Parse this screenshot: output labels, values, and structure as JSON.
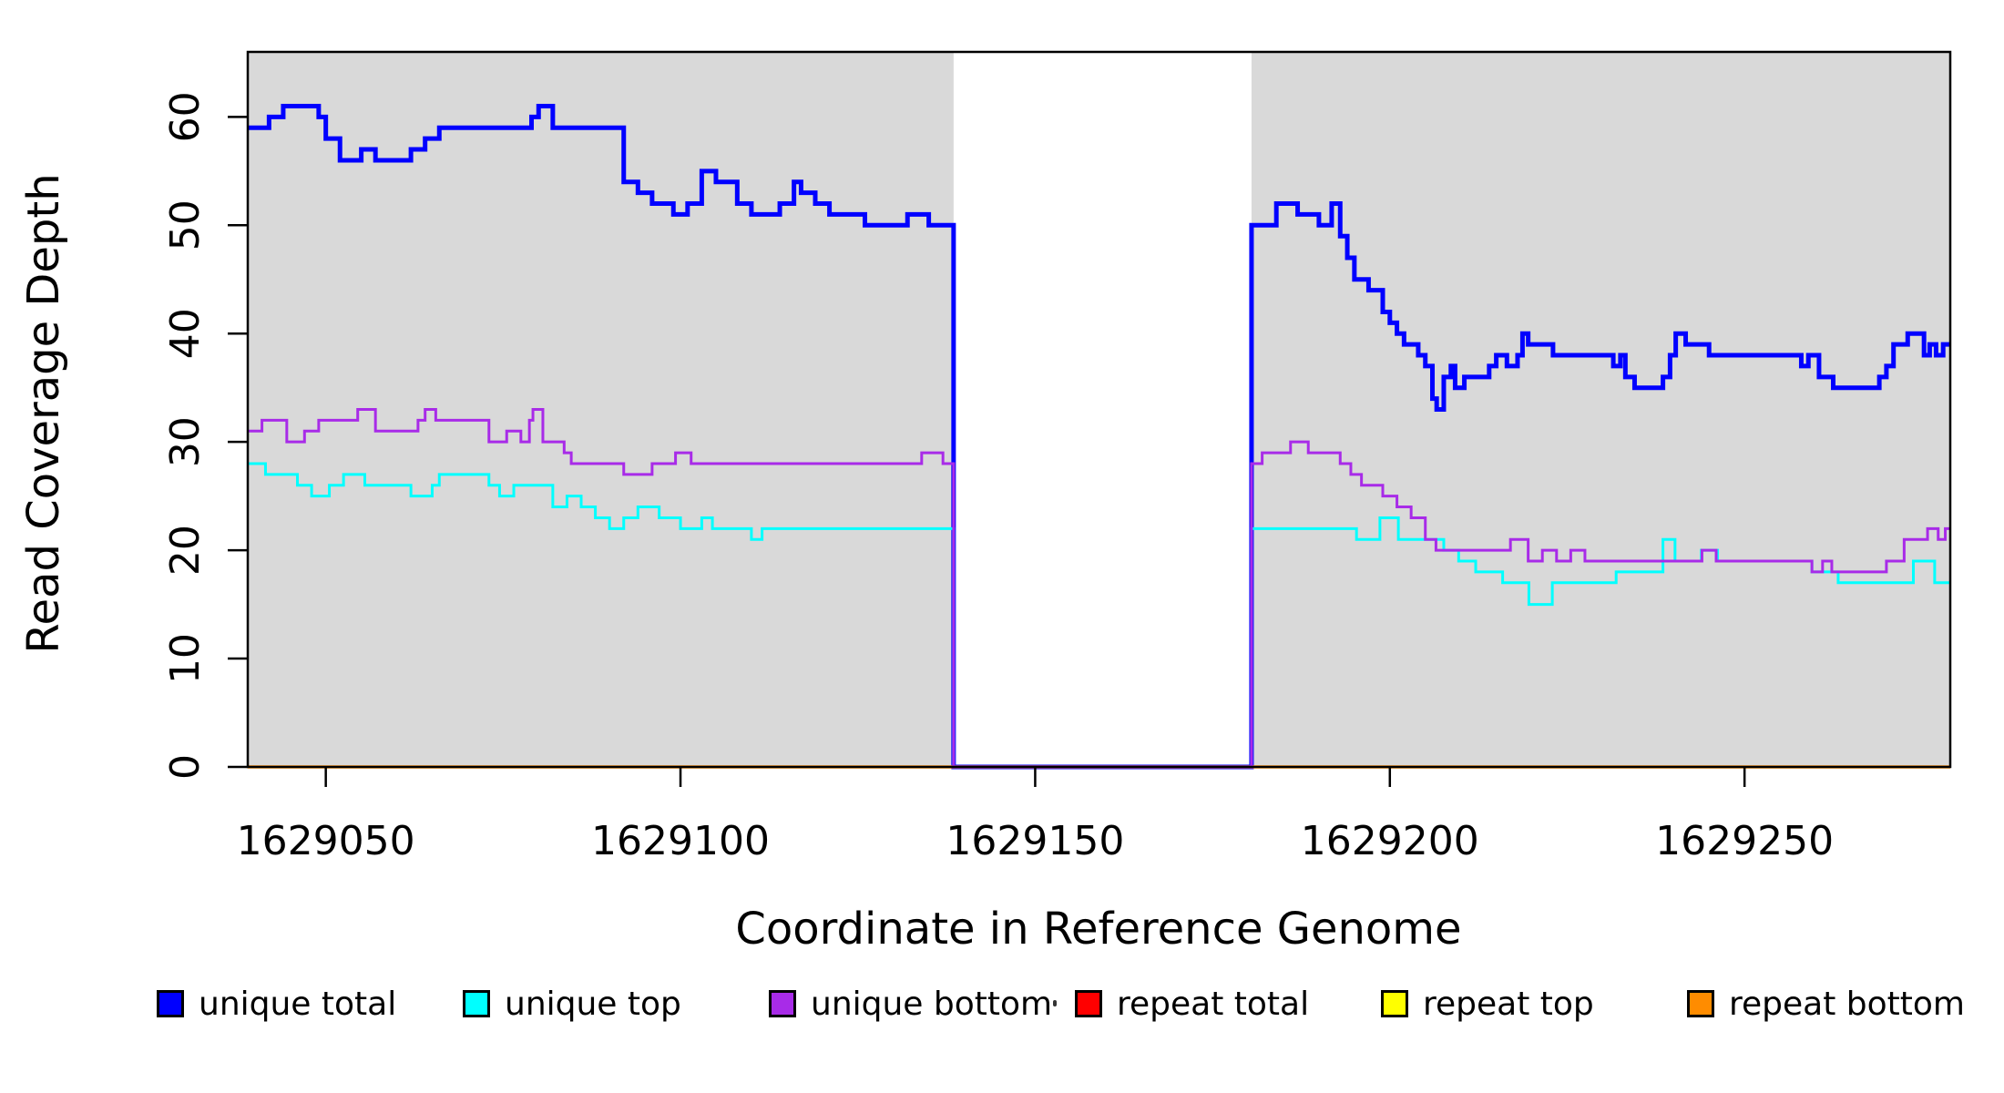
{
  "axes": {
    "xlabel": "Coordinate in Reference Genome",
    "ylabel": "Read Coverage Depth",
    "xticks": [
      1629050,
      1629100,
      1629150,
      1629200,
      1629250
    ],
    "yticks": [
      0,
      10,
      20,
      30,
      40,
      50,
      60
    ]
  },
  "chart_data": {
    "type": "line",
    "subtype": "step-post",
    "title": "",
    "xlabel": "Coordinate in Reference Genome",
    "ylabel": "Read Coverage Depth",
    "xlim": [
      1629039,
      1629279
    ],
    "ylim": [
      0,
      66
    ],
    "grid": false,
    "background_bands_color": "#D9D9D9",
    "shaded_regions": [
      [
        1629039,
        1629138.5
      ],
      [
        1629180.5,
        1629279
      ]
    ],
    "masked_gap": [
      1629138.5,
      1629180.5
    ],
    "series": [
      {
        "name": "unique total",
        "color": "#0000FF",
        "width": 5,
        "points": [
          [
            1629039,
            59
          ],
          [
            1629042,
            60
          ],
          [
            1629044,
            61
          ],
          [
            1629049,
            60
          ],
          [
            1629050,
            58
          ],
          [
            1629052,
            56
          ],
          [
            1629055,
            57
          ],
          [
            1629057,
            56
          ],
          [
            1629062,
            57
          ],
          [
            1629064,
            58
          ],
          [
            1629066,
            59
          ],
          [
            1629079,
            60
          ],
          [
            1629080,
            61
          ],
          [
            1629082,
            59
          ],
          [
            1629092,
            54
          ],
          [
            1629094,
            53
          ],
          [
            1629096,
            52
          ],
          [
            1629099,
            51
          ],
          [
            1629101,
            52
          ],
          [
            1629103,
            55
          ],
          [
            1629105,
            54
          ],
          [
            1629108,
            52
          ],
          [
            1629110,
            51
          ],
          [
            1629114,
            52
          ],
          [
            1629116,
            54
          ],
          [
            1629117,
            53
          ],
          [
            1629119,
            52
          ],
          [
            1629121,
            51
          ],
          [
            1629126,
            50
          ],
          [
            1629132,
            51
          ],
          [
            1629135,
            50
          ],
          [
            1629138.5,
            0
          ],
          [
            1629180.5,
            50
          ],
          [
            1629184,
            52
          ],
          [
            1629187,
            51
          ],
          [
            1629190,
            50
          ],
          [
            1629191.8,
            52
          ],
          [
            1629193,
            49
          ],
          [
            1629194,
            47
          ],
          [
            1629195,
            45
          ],
          [
            1629197,
            44
          ],
          [
            1629199,
            42
          ],
          [
            1629200,
            41
          ],
          [
            1629201,
            40
          ],
          [
            1629202,
            39
          ],
          [
            1629204,
            38
          ],
          [
            1629205,
            37
          ],
          [
            1629206,
            34
          ],
          [
            1629206.6,
            33
          ],
          [
            1629207.6,
            36
          ],
          [
            1629208.6,
            37
          ],
          [
            1629209.2,
            35
          ],
          [
            1629210.5,
            36
          ],
          [
            1629214,
            37
          ],
          [
            1629215,
            38
          ],
          [
            1629216.5,
            37
          ],
          [
            1629218,
            38
          ],
          [
            1629218.7,
            40
          ],
          [
            1629219.5,
            39
          ],
          [
            1629223,
            38
          ],
          [
            1629231.5,
            37
          ],
          [
            1629232.5,
            38
          ],
          [
            1629233.2,
            36
          ],
          [
            1629234.5,
            35
          ],
          [
            1629238.5,
            36
          ],
          [
            1629239.5,
            38
          ],
          [
            1629240.3,
            40
          ],
          [
            1629241.7,
            39
          ],
          [
            1629245,
            38
          ],
          [
            1629258,
            37
          ],
          [
            1629259,
            38
          ],
          [
            1629260.5,
            36
          ],
          [
            1629262.5,
            35
          ],
          [
            1629269,
            36
          ],
          [
            1629270,
            37
          ],
          [
            1629271,
            39
          ],
          [
            1629273,
            40
          ],
          [
            1629275.3,
            38
          ],
          [
            1629276.1,
            39
          ],
          [
            1629277,
            38
          ],
          [
            1629278,
            39
          ]
        ]
      },
      {
        "name": "unique top",
        "color": "#00FFFF",
        "width": 3,
        "points": [
          [
            1629039,
            28
          ],
          [
            1629041.5,
            27
          ],
          [
            1629046,
            26
          ],
          [
            1629048,
            25
          ],
          [
            1629050.5,
            26
          ],
          [
            1629052.5,
            27
          ],
          [
            1629055.5,
            26
          ],
          [
            1629062,
            25
          ],
          [
            1629065,
            26
          ],
          [
            1629066,
            27
          ],
          [
            1629073,
            26
          ],
          [
            1629074.5,
            25
          ],
          [
            1629076.5,
            26
          ],
          [
            1629082,
            24
          ],
          [
            1629084,
            25
          ],
          [
            1629086,
            24
          ],
          [
            1629088,
            23
          ],
          [
            1629090,
            22
          ],
          [
            1629092,
            23
          ],
          [
            1629094,
            24
          ],
          [
            1629097,
            23
          ],
          [
            1629100,
            22
          ],
          [
            1629103,
            23
          ],
          [
            1629104.5,
            22
          ],
          [
            1629110,
            21
          ],
          [
            1629111.5,
            22
          ],
          [
            1629138.5,
            0
          ],
          [
            1629180.5,
            22
          ],
          [
            1629195.3,
            21
          ],
          [
            1629198.6,
            23
          ],
          [
            1629201.2,
            21
          ],
          [
            1629207.6,
            20
          ],
          [
            1629209.7,
            19
          ],
          [
            1629212.1,
            18
          ],
          [
            1629215.9,
            17
          ],
          [
            1629219.6,
            15
          ],
          [
            1629222.9,
            17
          ],
          [
            1629231.9,
            18
          ],
          [
            1629238.5,
            21
          ],
          [
            1629240.2,
            19
          ],
          [
            1629243.9,
            20
          ],
          [
            1629246.2,
            19
          ],
          [
            1629259.5,
            18
          ],
          [
            1629263.2,
            17
          ],
          [
            1629273.8,
            19
          ],
          [
            1629276.8,
            17
          ]
        ]
      },
      {
        "name": "repeat total",
        "color": "#FF0000",
        "width": 3,
        "points": [
          [
            1629039,
            0
          ]
        ]
      },
      {
        "name": "repeat top",
        "color": "#FFFF00",
        "width": 3,
        "points": [
          [
            1629039,
            0
          ]
        ]
      },
      {
        "name": "repeat bottom",
        "color": "#FF8C00",
        "width": 3.5,
        "points": [
          [
            1629039,
            0
          ]
        ]
      },
      {
        "name": "unique bottom",
        "color": "#A82BE8",
        "width": 3,
        "points": [
          [
            1629039,
            31
          ],
          [
            1629041,
            32
          ],
          [
            1629044.5,
            30
          ],
          [
            1629047,
            31
          ],
          [
            1629049,
            32
          ],
          [
            1629054.5,
            33
          ],
          [
            1629057,
            31
          ],
          [
            1629063,
            32
          ],
          [
            1629064,
            33
          ],
          [
            1629065.5,
            32
          ],
          [
            1629073,
            30
          ],
          [
            1629075.5,
            31
          ],
          [
            1629077.5,
            30
          ],
          [
            1629078.7,
            32
          ],
          [
            1629079.2,
            33
          ],
          [
            1629080.6,
            30
          ],
          [
            1629083.6,
            29
          ],
          [
            1629084.6,
            28
          ],
          [
            1629092,
            27
          ],
          [
            1629096,
            28
          ],
          [
            1629099.3,
            29
          ],
          [
            1629101.5,
            28
          ],
          [
            1629134,
            29
          ],
          [
            1629137,
            28
          ],
          [
            1629138.5,
            0
          ],
          [
            1629180.5,
            28
          ],
          [
            1629182,
            29
          ],
          [
            1629186,
            30
          ],
          [
            1629188.5,
            29
          ],
          [
            1629193,
            28
          ],
          [
            1629194.5,
            27
          ],
          [
            1629196,
            26
          ],
          [
            1629199,
            25
          ],
          [
            1629201,
            24
          ],
          [
            1629203,
            23
          ],
          [
            1629205,
            21
          ],
          [
            1629206.5,
            20
          ],
          [
            1629217,
            21
          ],
          [
            1629219.5,
            19
          ],
          [
            1629221.5,
            20
          ],
          [
            1629223.5,
            19
          ],
          [
            1629225.5,
            20
          ],
          [
            1629227.5,
            19
          ],
          [
            1629244,
            20
          ],
          [
            1629246,
            19
          ],
          [
            1629259.5,
            18
          ],
          [
            1629261,
            19
          ],
          [
            1629262.3,
            18
          ],
          [
            1629270,
            19
          ],
          [
            1629272.5,
            21
          ],
          [
            1629275.8,
            22
          ],
          [
            1629277.3,
            21
          ],
          [
            1629278.3,
            22
          ]
        ]
      }
    ]
  },
  "legend": {
    "items": [
      {
        "label": "unique total",
        "color": "#0000FF"
      },
      {
        "label": "unique top",
        "color": "#00FFFF"
      },
      {
        "label": "unique bottom",
        "color": "#A82BE8"
      },
      {
        "label": "repeat total",
        "color": "#FF0000"
      },
      {
        "label": "repeat top",
        "color": "#FFFF00"
      },
      {
        "label": "repeat bottom",
        "color": "#FF8C00"
      }
    ]
  },
  "colors": {
    "panel_shading": "#D9D9D9",
    "axis": "#000000",
    "background": "#FFFFFF"
  }
}
